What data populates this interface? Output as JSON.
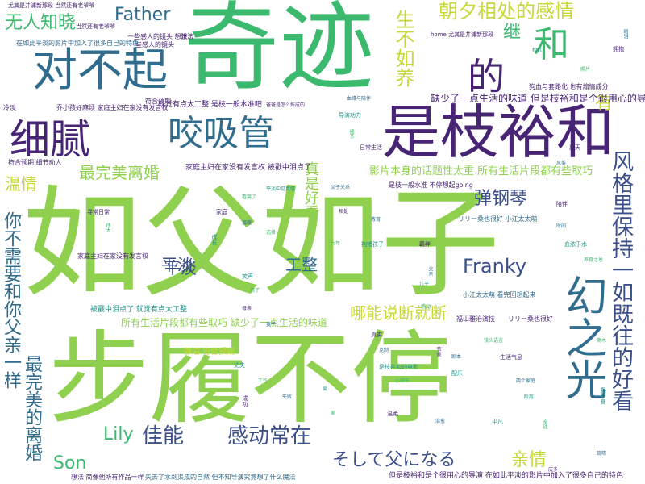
{
  "colors": {
    "lime": "#8fd14f",
    "green": "#3bb96f",
    "teal": "#22958b",
    "blue": "#2f6c8e",
    "indigo": "#3b4f8a",
    "purple": "#482475",
    "yellow": "#c7d83a"
  },
  "words": {
    "w01": "如父如子",
    "w02": "步履不停",
    "w03": "奇迹",
    "w04": "是枝裕和",
    "w05": "对不起",
    "w06": "细腻",
    "w07": "咬吸管",
    "w08": "幻之光",
    "w09": "的",
    "w10": "和",
    "w11": "风格里保持一如既往的好看",
    "w12": "你不需要和你父亲一样",
    "w13": "最完美的离婚",
    "w14": "朝夕相处的感情",
    "w15": "无人知晓",
    "w16": "Father",
    "w17": "生不如养",
    "w18": "继",
    "w19": "有",
    "w20": "最完美离婚",
    "w21": "温情",
    "w22": "真是好看",
    "w23": "弹钢琴",
    "w24": "平淡",
    "w25": "工整",
    "w26": "Franky",
    "w27": "哪能说断就断",
    "w28": "佳能",
    "w29": "感动常在",
    "w30": "そして父になる",
    "w31": "亲情",
    "w32": "Lily",
    "w33": "Son",
    "w34": "缺少了一点生活的味道  但是枝裕和是个很用心的导演",
    "w35": "影片本身的话题性太重  所有生活片段都有些取巧",
    "w36": "所有生活片段都有些取巧  缺少了一点生活的味道",
    "w37": "被戳中泪点了  就觉有点太工整",
    "w38": "家庭主妇在家没有发言权  被戳中泪点了",
    "w39": "就觉有点太工整  是枝一般水准吧",
    "w40": "家庭主妇在家没有发言权",
    "w41": "尤其是井浦新那段  当然还有老爷爷",
    "w42": "一些感人的镜头  想法",
    "w43": "一些感人的镜头",
    "w44": "在如此平淡的影片中加入了很多自己的特色",
    "w45": "但是枝裕和是个很用心的导演  在如此平淡的影片中加入了很多自己的特色",
    "w46": "失去了水到渠成的自然  但不知导演究竟想了什么魔法",
    "w47": "想法  简像他所有作品一样",
    "w48": "狗血与套路化  也有煽情成分",
    "w49": "是枝一般水准  不停想起going",
    "w50": "リリー桑也很好  小江太太萌",
    "w51": "小江太太萌  看完回想起来",
    "w52": "福山雅治演技",
    "w53": "リリー桑也很好",
    "w54": "寻常日常",
    "w55": "符合预期  细节动人",
    "w56": "乔小孩好麻烦  家庭主妇在家没有发言权",
    "w57": "home  尤其是井浦新那段",
    "w58": "当然还有老爷爷",
    "w59": "符合预期",
    "w60": "静泊  符合预期",
    "w61": "冷淡",
    "w62": "想法"
  },
  "tiny": [
    "爸爸是怎么炼成的",
    "血缘与陪伴",
    "导演功力",
    "细节",
    "日常生活",
    "父子关系",
    "平淡中见真情",
    "看哭了",
    "家庭",
    "温暖",
    "成长",
    "选择",
    "相处",
    "教育",
    "抱错孩子",
    "六年",
    "羁绊",
    "父亲",
    "儿子",
    "感动",
    "真实",
    "克制",
    "是枝裕和的电影",
    "小细节",
    "节奏",
    "剧本",
    "配乐",
    "镜头语言",
    "生活气息",
    "两个家庭",
    "阶层",
    "金钱",
    "陪伴",
    "时间",
    "血浓于水",
    "养育之恩",
    "庆多",
    "琉晴",
    "野野宫",
    "斋木",
    "夏天",
    "风筝",
    "相机",
    "照片",
    "拥抱",
    "眼泪",
    "笑声",
    "孩子",
    "母亲",
    "妻子",
    "丈夫",
    "工作",
    "成功",
    "失败",
    "爱",
    "家",
    "温柔",
    "治愈",
    "平凡",
    "伟大"
  ]
}
